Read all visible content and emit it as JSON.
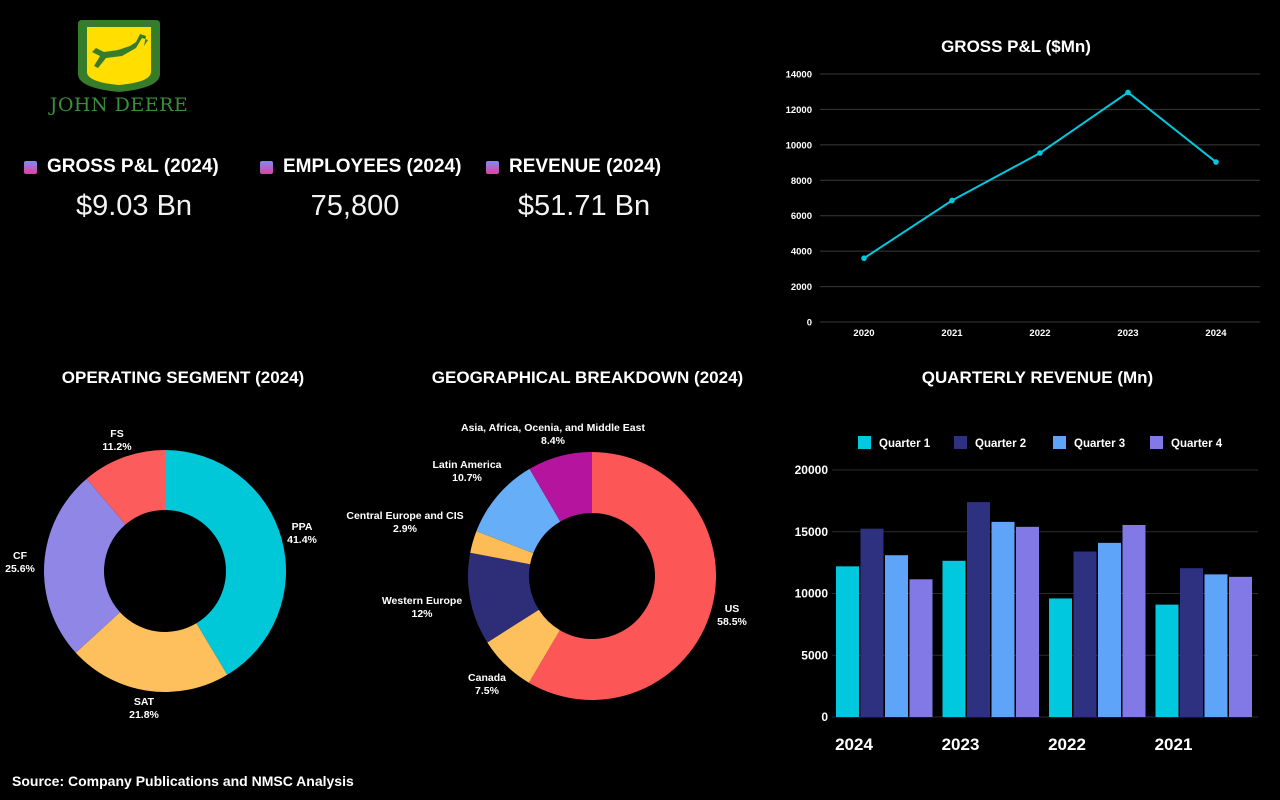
{
  "brand": {
    "name": "JOHN DEERE"
  },
  "kpis": [
    {
      "label": "GROSS P&L (2024)",
      "value": "$9.03 Bn"
    },
    {
      "label": "EMPLOYEES (2024)",
      "value": "75,800"
    },
    {
      "label": "REVENUE (2024)",
      "value": "$51.71 Bn"
    }
  ],
  "source": "Source: Company Publications and NMSC Analysis",
  "chart_data": [
    {
      "type": "line",
      "title": "GROSS P&L ($Mn)",
      "x": [
        "2020",
        "2021",
        "2022",
        "2023",
        "2024"
      ],
      "values": [
        3600,
        6860,
        9540,
        12960,
        9030
      ],
      "ylim": [
        0,
        14000
      ],
      "yticks": [
        0,
        2000,
        4000,
        6000,
        8000,
        10000,
        12000,
        14000
      ],
      "color": "#00c8de",
      "grid": true
    },
    {
      "type": "pie",
      "title": "OPERATING SEGMENT (2024)",
      "slices": [
        {
          "label": "PPA",
          "pct": "41.4%",
          "value": 41.4,
          "color": "#00c8d8"
        },
        {
          "label": "SAT",
          "pct": "21.8%",
          "value": 21.8,
          "color": "#fec05c"
        },
        {
          "label": "CF",
          "pct": "25.6%",
          "value": 25.6,
          "color": "#8f86e6"
        },
        {
          "label": "FS",
          "pct": "11.2%",
          "value": 11.2,
          "color": "#fc5c5c"
        }
      ]
    },
    {
      "type": "pie",
      "title": "GEOGRAPHICAL BREAKDOWN (2024)",
      "slices": [
        {
          "label": "US",
          "pct": "58.5%",
          "value": 58.5,
          "color": "#fd5656"
        },
        {
          "label": "Canada",
          "pct": "7.5%",
          "value": 7.5,
          "color": "#fec05c"
        },
        {
          "label": "Western Europe",
          "pct": "12%",
          "value": 12,
          "color": "#2e2e78"
        },
        {
          "label": "Central Europe and CIS",
          "pct": "2.9%",
          "value": 2.9,
          "color": "#fdbc55"
        },
        {
          "label": "Latin America",
          "pct": "10.7%",
          "value": 10.7,
          "color": "#66aef8"
        },
        {
          "label": "Asia, Africa, Ocenia, and Middle East",
          "pct": "8.4%",
          "value": 8.4,
          "color": "#b5159e"
        }
      ]
    },
    {
      "type": "bar",
      "title": "QUARTERLY REVENUE (Mn)",
      "categories": [
        "2024",
        "2023",
        "2022",
        "2021"
      ],
      "ylim": [
        0,
        20000
      ],
      "yticks": [
        0,
        5000,
        10000,
        15000,
        20000
      ],
      "legend": "top",
      "grid": true,
      "series": [
        {
          "name": "Quarter 1",
          "color": "#00c8de",
          "values": [
            12200,
            12650,
            9600,
            9100
          ]
        },
        {
          "name": "Quarter 2",
          "color": "#2e3080",
          "values": [
            15250,
            17400,
            13400,
            12050
          ]
        },
        {
          "name": "Quarter 3",
          "color": "#5ea4f8",
          "values": [
            13100,
            15800,
            14100,
            11550
          ]
        },
        {
          "name": "Quarter 4",
          "color": "#8278e6",
          "values": [
            11150,
            15400,
            15550,
            11350
          ]
        }
      ]
    }
  ]
}
